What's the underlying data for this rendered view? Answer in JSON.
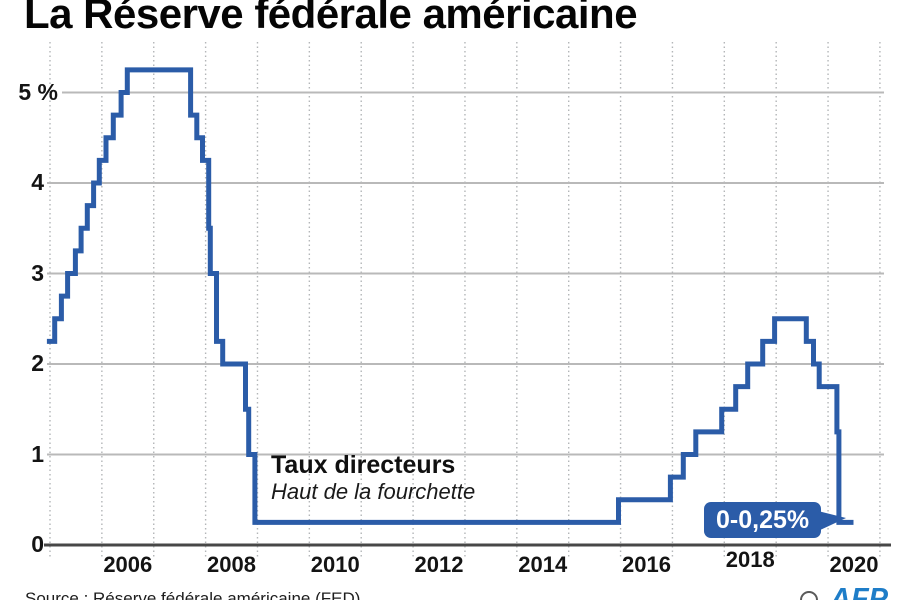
{
  "header": {
    "title": "La Réserve fédérale américaine"
  },
  "annotation": {
    "label": "Taux directeurs",
    "sublabel": "Haut de la fourchette"
  },
  "badge": {
    "label": "0-0,25%"
  },
  "footer": {
    "source": "Source : Réserve fédérale américaine (FED)",
    "credit_symbol": "©",
    "credit": "AFP"
  },
  "colors": {
    "line": "#2b5ca8",
    "badge_bg": "#2b5ca8",
    "grid": "#b9b9b9",
    "year_grid": "#b3b6b8",
    "axis": "#474747",
    "text": "#141414",
    "credit_blue": "#1e7dc8"
  },
  "chart_data": {
    "type": "line",
    "step": true,
    "title": "La Réserve fédérale américaine",
    "ylabel": "%",
    "xlabel": "",
    "grid": true,
    "legend": "none",
    "xlim": [
      2004.94,
      2021.1
    ],
    "ylim": [
      0,
      5.8
    ],
    "x_ticks": [
      {
        "label": "2006",
        "x": 2006.5,
        "dy": 0
      },
      {
        "label": "2008",
        "x": 2008.5,
        "dy": 0
      },
      {
        "label": "2010",
        "x": 2010.5,
        "dy": 0
      },
      {
        "label": "2012",
        "x": 2012.5,
        "dy": 0
      },
      {
        "label": "2014",
        "x": 2014.5,
        "dy": 0
      },
      {
        "label": "2016",
        "x": 2016.5,
        "dy": 0
      },
      {
        "label": "2018",
        "x": 2018.5,
        "dy": -5
      },
      {
        "label": "2020",
        "x": 2020.5,
        "dy": 0
      }
    ],
    "y_ticks": [
      {
        "label": "0",
        "value": 0
      },
      {
        "label": "1",
        "value": 1
      },
      {
        "label": "2",
        "value": 2
      },
      {
        "label": "3",
        "value": 3
      },
      {
        "label": "4",
        "value": 4
      },
      {
        "label": "5 %",
        "value": 5
      }
    ],
    "year_gridlines": [
      2005,
      2006,
      2007,
      2008,
      2009,
      2010,
      2011,
      2012,
      2013,
      2014,
      2015,
      2016,
      2017,
      2018,
      2019,
      2020,
      2021
    ],
    "series": [
      {
        "name": "Taux directeurs — haut de la fourchette (%)",
        "steps": [
          [
            2004.94,
            2.25
          ],
          [
            2005.09,
            2.5
          ],
          [
            2005.22,
            2.75
          ],
          [
            2005.34,
            3.0
          ],
          [
            2005.49,
            3.25
          ],
          [
            2005.6,
            3.5
          ],
          [
            2005.72,
            3.75
          ],
          [
            2005.84,
            4.0
          ],
          [
            2005.95,
            4.25
          ],
          [
            2006.08,
            4.5
          ],
          [
            2006.22,
            4.75
          ],
          [
            2006.37,
            5.0
          ],
          [
            2006.49,
            5.25
          ],
          [
            2007.71,
            4.75
          ],
          [
            2007.83,
            4.5
          ],
          [
            2007.94,
            4.25
          ],
          [
            2008.06,
            3.5
          ],
          [
            2008.09,
            3.0
          ],
          [
            2008.21,
            2.25
          ],
          [
            2008.33,
            2.0
          ],
          [
            2008.77,
            1.5
          ],
          [
            2008.83,
            1.0
          ],
          [
            2008.95,
            0.25
          ],
          [
            2015.96,
            0.5
          ],
          [
            2016.96,
            0.75
          ],
          [
            2017.21,
            1.0
          ],
          [
            2017.45,
            1.25
          ],
          [
            2017.95,
            1.5
          ],
          [
            2018.22,
            1.75
          ],
          [
            2018.45,
            2.0
          ],
          [
            2018.74,
            2.25
          ],
          [
            2018.97,
            2.5
          ],
          [
            2019.58,
            2.25
          ],
          [
            2019.72,
            2.0
          ],
          [
            2019.83,
            1.75
          ],
          [
            2020.17,
            1.25
          ],
          [
            2020.21,
            0.25
          ]
        ],
        "end_x": 2020.49,
        "final_value_label": "0-0,25%"
      }
    ]
  }
}
